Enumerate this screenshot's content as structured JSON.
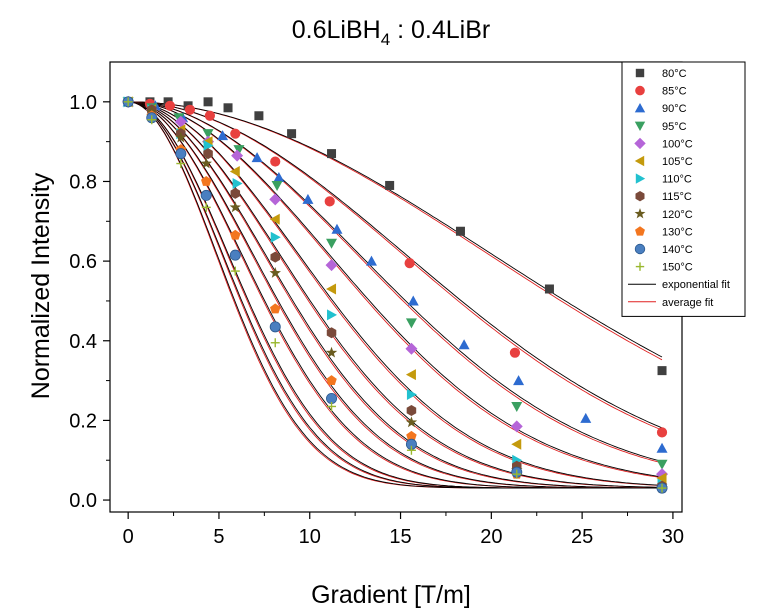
{
  "chart_data": {
    "type": "scatter",
    "title_main": "0.6LiBH",
    "title_sub": "4",
    "title_rest": " : 0.4LiBr",
    "xlabel": "Gradient [T/m]",
    "ylabel": "Normalized Intensity",
    "xlim": [
      -1,
      30.5
    ],
    "ylim": [
      -0.03,
      1.1
    ],
    "xticks": [
      "0",
      "5",
      "10",
      "15",
      "20",
      "25",
      "30"
    ],
    "yticks": [
      "0.0",
      "0.2",
      "0.4",
      "0.6",
      "0.8",
      "1.0"
    ],
    "legend_position": "top-right",
    "grid": false,
    "series": [
      {
        "name": "80°C",
        "marker": "square",
        "color": "#404040",
        "D": 0.00125,
        "x": [
          0,
          1.2,
          2.2,
          3.3,
          4.4,
          5.5,
          7.2,
          9.0,
          11.2,
          14.4,
          18.3,
          23.2,
          29.4
        ],
        "y": [
          1.0,
          1.0,
          1.0,
          0.99,
          1.0,
          0.985,
          0.965,
          0.92,
          0.87,
          0.79,
          0.675,
          0.53,
          0.325
        ]
      },
      {
        "name": "85°C",
        "marker": "circle",
        "color": "#e8403f",
        "D": 0.00215,
        "x": [
          0,
          1.2,
          2.3,
          3.4,
          4.5,
          5.9,
          8.1,
          11.1,
          15.5,
          21.3,
          29.4
        ],
        "y": [
          1.0,
          0.995,
          0.99,
          0.98,
          0.965,
          0.92,
          0.85,
          0.75,
          0.595,
          0.37,
          0.17
        ]
      },
      {
        "name": "90°C",
        "marker": "triangle-up",
        "color": "#2d6bd0",
        "D": 0.0031,
        "x": [
          0,
          1.5,
          3.0,
          5.2,
          7.1,
          8.3,
          9.9,
          11.5,
          13.4,
          15.7,
          18.5,
          21.5,
          25.2,
          29.4
        ],
        "y": [
          1.0,
          0.99,
          0.96,
          0.915,
          0.86,
          0.81,
          0.755,
          0.68,
          0.6,
          0.5,
          0.39,
          0.3,
          0.205,
          0.13
        ]
      },
      {
        "name": "95°C",
        "marker": "triangle-down",
        "color": "#3aa061",
        "D": 0.0041,
        "x": [
          0,
          1.3,
          2.8,
          4.4,
          6.1,
          8.2,
          11.2,
          15.6,
          21.4,
          29.4
        ],
        "y": [
          1.0,
          0.985,
          0.96,
          0.92,
          0.88,
          0.79,
          0.645,
          0.445,
          0.235,
          0.09
        ]
      },
      {
        "name": "100°C",
        "marker": "diamond",
        "color": "#b565d8",
        "D": 0.0057,
        "x": [
          0,
          1.3,
          2.9,
          4.4,
          6.0,
          8.1,
          11.2,
          15.6,
          21.4,
          29.4
        ],
        "y": [
          1.0,
          0.98,
          0.95,
          0.9,
          0.865,
          0.755,
          0.59,
          0.38,
          0.185,
          0.065
        ]
      },
      {
        "name": "105°C",
        "marker": "triangle-left",
        "color": "#c49a0d",
        "D": 0.0072,
        "x": [
          0,
          1.3,
          2.9,
          4.4,
          5.9,
          8.1,
          11.2,
          15.6,
          21.4,
          29.4
        ],
        "y": [
          1.0,
          0.98,
          0.93,
          0.9,
          0.825,
          0.705,
          0.53,
          0.315,
          0.14,
          0.055
        ]
      },
      {
        "name": "110°C",
        "marker": "triangle-right",
        "color": "#22c1cf",
        "D": 0.0088,
        "x": [
          0,
          1.3,
          2.9,
          4.4,
          6.0,
          8.1,
          11.2,
          15.6,
          21.4,
          29.4
        ],
        "y": [
          1.0,
          0.98,
          0.92,
          0.89,
          0.795,
          0.66,
          0.465,
          0.265,
          0.1,
          0.04
        ]
      },
      {
        "name": "115°C",
        "marker": "hexagon",
        "color": "#7a4a3a",
        "D": 0.0106,
        "x": [
          0,
          1.3,
          2.9,
          4.4,
          5.9,
          8.1,
          11.2,
          15.6,
          21.4,
          29.4
        ],
        "y": [
          1.0,
          0.98,
          0.92,
          0.87,
          0.77,
          0.61,
          0.42,
          0.225,
          0.085,
          0.035
        ]
      },
      {
        "name": "120°C",
        "marker": "star",
        "color": "#6a5c20",
        "D": 0.0128,
        "x": [
          0,
          1.3,
          2.9,
          4.3,
          5.9,
          8.1,
          11.2,
          15.6,
          21.4,
          29.4
        ],
        "y": [
          1.0,
          0.975,
          0.91,
          0.845,
          0.735,
          0.57,
          0.37,
          0.195,
          0.075,
          0.03
        ]
      },
      {
        "name": "130°C",
        "marker": "pentagon",
        "color": "#f3761f",
        "D": 0.0165,
        "x": [
          0,
          1.3,
          2.9,
          4.3,
          5.9,
          8.1,
          11.2,
          15.6,
          21.4,
          29.4
        ],
        "y": [
          1.0,
          0.965,
          0.88,
          0.8,
          0.665,
          0.48,
          0.3,
          0.16,
          0.065,
          0.03
        ]
      },
      {
        "name": "140°C",
        "marker": "ball",
        "color": "#4a7fc0",
        "D": 0.0185,
        "x": [
          0,
          1.3,
          2.9,
          4.3,
          5.9,
          8.1,
          11.2,
          15.6,
          21.4,
          29.4
        ],
        "y": [
          1.0,
          0.96,
          0.87,
          0.765,
          0.615,
          0.435,
          0.255,
          0.14,
          0.07,
          0.03
        ]
      },
      {
        "name": "150°C",
        "marker": "plus",
        "color": "#9ab82f",
        "D": 0.021,
        "x": [
          0,
          1.3,
          2.9,
          4.3,
          5.9,
          8.1,
          11.2,
          15.6,
          21.4,
          29.4
        ],
        "y": [
          1.0,
          0.955,
          0.845,
          0.735,
          0.575,
          0.395,
          0.235,
          0.125,
          0.065,
          0.03
        ]
      }
    ],
    "fit_legend": [
      {
        "name": "exponential fit",
        "color": "#000000"
      },
      {
        "name": "average fit",
        "color": "#e02020"
      }
    ]
  }
}
